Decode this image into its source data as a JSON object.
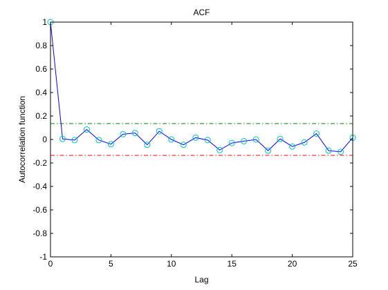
{
  "chart_data": {
    "type": "line",
    "title": "ACF",
    "xlabel": "Lag",
    "ylabel": "Autocorrelation function",
    "xlim": [
      0,
      25
    ],
    "ylim": [
      -1,
      1
    ],
    "x_ticks": [
      0,
      5,
      10,
      15,
      20,
      25
    ],
    "y_ticks": [
      -1,
      -0.8,
      -0.6,
      -0.4,
      -0.2,
      0,
      0.2,
      0.4,
      0.6,
      0.8,
      1
    ],
    "grid": false,
    "series": [
      {
        "color": "#0000ff",
        "marker": "circle",
        "marker_color": "#00bfbf",
        "x": [
          0,
          1,
          2,
          3,
          4,
          5,
          6,
          7,
          8,
          9,
          10,
          11,
          12,
          13,
          14,
          15,
          16,
          17,
          18,
          19,
          20,
          21,
          22,
          23,
          24,
          25
        ],
        "y": [
          1.0,
          0.005,
          -0.005,
          0.085,
          -0.005,
          -0.04,
          0.045,
          0.055,
          -0.045,
          0.07,
          0.0,
          -0.045,
          0.015,
          -0.005,
          -0.09,
          -0.03,
          -0.015,
          0.0,
          -0.095,
          0.005,
          -0.06,
          -0.025,
          0.05,
          -0.095,
          -0.105,
          0.015
        ]
      }
    ],
    "reference_lines": [
      {
        "y": 0.135,
        "color": "#008000",
        "style": "dash-dot"
      },
      {
        "y": -0.135,
        "color": "#ff0000",
        "style": "dash-dot"
      }
    ]
  }
}
